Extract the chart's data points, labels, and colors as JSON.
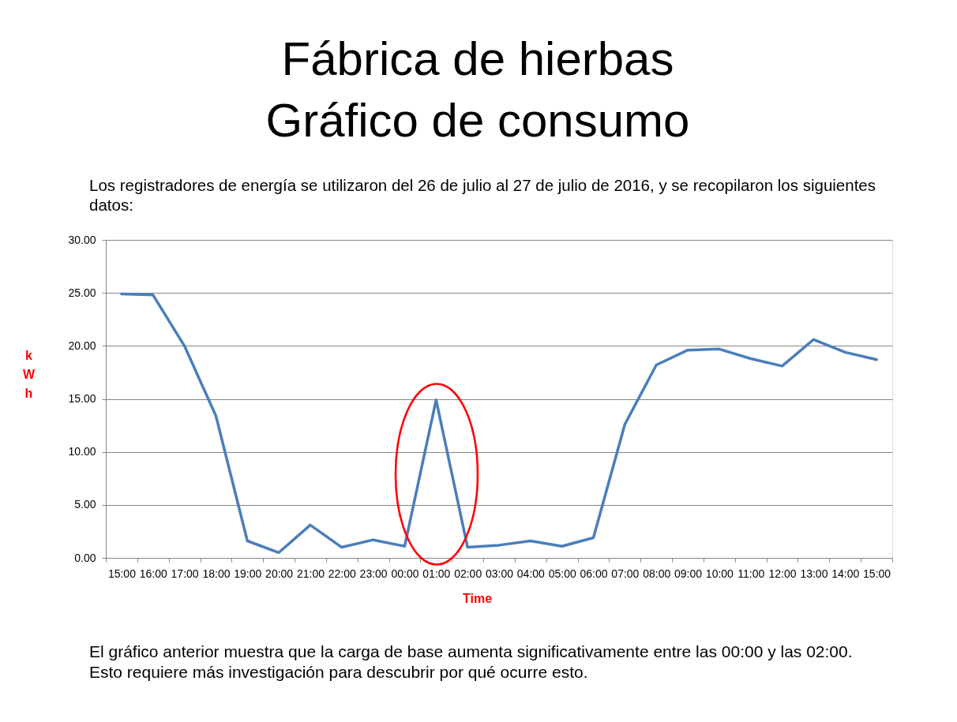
{
  "chart_data": {
    "type": "line",
    "title": "Fábrica de hierbas\nGráfico de consumo",
    "subtitle": "Los registradores de energía se utilizaron del 26 de julio al 27 de julio de 2016, y se recopilaron los siguientes datos:",
    "xlabel": "Time",
    "ylabel": "kWh",
    "categories": [
      "15:00",
      "16:00",
      "17:00",
      "18:00",
      "19:00",
      "20:00",
      "21:00",
      "22:00",
      "23:00",
      "00:00",
      "01:00",
      "02:00",
      "03:00",
      "04:00",
      "05:00",
      "06:00",
      "07:00",
      "08:00",
      "09:00",
      "10:00",
      "11:00",
      "12:00",
      "13:00",
      "14:00",
      "15:00"
    ],
    "series": [
      {
        "color": "#4a7ebb",
        "values": [
          24.9,
          24.8,
          20.0,
          13.4,
          1.6,
          0.5,
          3.1,
          1.0,
          1.7,
          1.1,
          14.9,
          1.0,
          1.2,
          1.6,
          1.1,
          1.9,
          12.6,
          18.2,
          19.6,
          19.7,
          18.8,
          18.1,
          20.6,
          19.4,
          18.7
        ]
      }
    ],
    "ylim": [
      0,
      30
    ],
    "yticks": [
      {
        "value": 0,
        "label": "0.00"
      },
      {
        "value": 5,
        "label": "5.00"
      },
      {
        "value": 10,
        "label": "10.00"
      },
      {
        "value": 15,
        "label": "15.00"
      },
      {
        "value": 20,
        "label": "20.00"
      },
      {
        "value": 25,
        "label": "25.00"
      },
      {
        "value": 30,
        "label": "30.00"
      }
    ],
    "grid": "y",
    "line_style": "solid",
    "annotations": [
      "El gráfico anterior muestra que la carga de base aumenta significativamente entre las 00:00 y las 02:00.",
      "Esto requiere más investigación para descubrir por qué ocurre esto."
    ]
  }
}
